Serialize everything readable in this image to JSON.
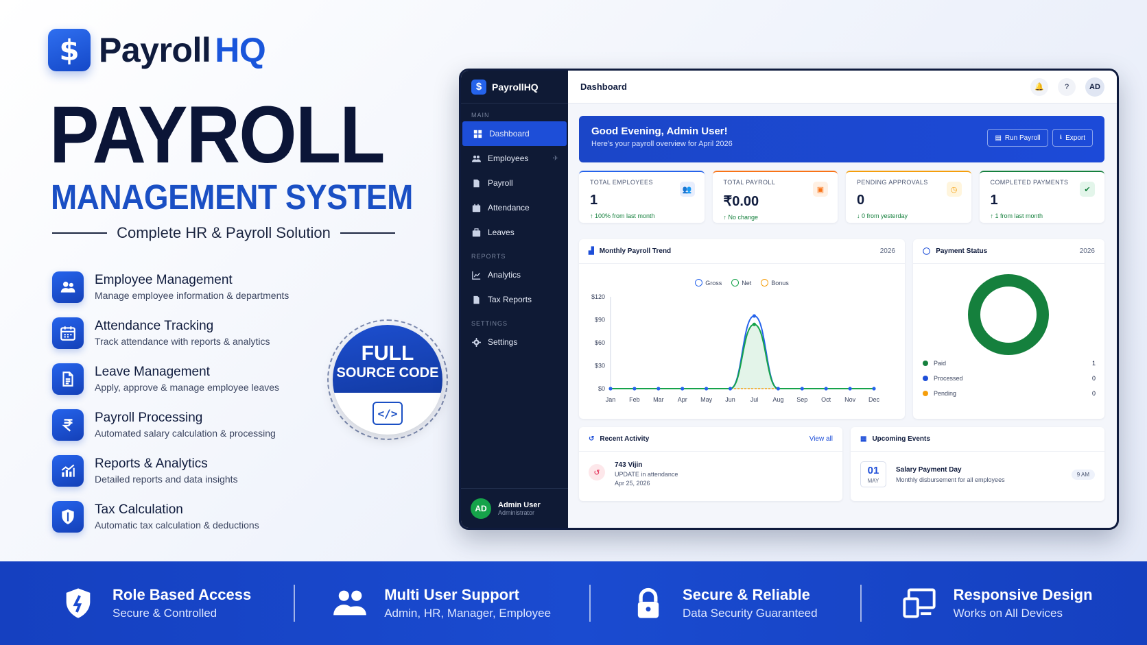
{
  "brand": {
    "mark": "$",
    "name_a": "Payroll",
    "name_b": "HQ"
  },
  "hero": {
    "title": "PAYROLL",
    "subtitle": "MANAGEMENT SYSTEM",
    "tagline": "Complete HR & Payroll Solution"
  },
  "features": [
    {
      "icon": "users-icon",
      "title": "Employee Management",
      "desc": "Manage employee information & departments"
    },
    {
      "icon": "calendar-icon",
      "title": "Attendance Tracking",
      "desc": "Track attendance with reports & analytics"
    },
    {
      "icon": "document-icon",
      "title": "Leave Management",
      "desc": "Apply, approve & manage employee leaves"
    },
    {
      "icon": "rupee-icon",
      "title": "Payroll Processing",
      "desc": "Automated salary calculation & processing"
    },
    {
      "icon": "chart-icon",
      "title": "Reports & Analytics",
      "desc": "Detailed reports and data insights"
    },
    {
      "icon": "shield-icon",
      "title": "Tax Calculation",
      "desc": "Automatic tax calculation & deductions"
    }
  ],
  "badge": {
    "line1": "FULL",
    "line2": "SOURCE CODE",
    "code": "</>"
  },
  "app": {
    "sidebar": {
      "brand": "PayrollHQ",
      "sections": {
        "main": "MAIN",
        "reports": "REPORTS",
        "settings": "SETTINGS"
      },
      "items": {
        "dashboard": "Dashboard",
        "employees": "Employees",
        "payroll": "Payroll",
        "attendance": "Attendance",
        "leaves": "Leaves",
        "analytics": "Analytics",
        "tax_reports": "Tax Reports",
        "settings": "Settings"
      },
      "user": {
        "initials": "AD",
        "name": "Admin User",
        "role": "Administrator"
      }
    },
    "topbar": {
      "title": "Dashboard",
      "avatar": "AD"
    },
    "welcome": {
      "greeting": "Good Evening, Admin User!",
      "sub": "Here's your payroll overview for April 2026",
      "run_payroll": "Run Payroll",
      "export": "Export"
    },
    "stats": [
      {
        "label": "TOTAL EMPLOYEES",
        "value": "1",
        "change": "↑ 100% from last month",
        "color": "#2563eb",
        "bg": "#e8eefd",
        "icon": "users-icon"
      },
      {
        "label": "TOTAL PAYROLL",
        "value": "₹0.00",
        "change": "↑ No change",
        "color": "#f97316",
        "bg": "#fff0e3",
        "icon": "wallet-icon"
      },
      {
        "label": "PENDING APPROVALS",
        "value": "0",
        "change": "↓ 0 from yesterday",
        "color": "#f59e0b",
        "bg": "#fff5dd",
        "icon": "clock-icon"
      },
      {
        "label": "COMPLETED PAYMENTS",
        "value": "1",
        "change": "↑ 1 from last month",
        "color": "#15803d",
        "bg": "#e3f5ea",
        "icon": "check-icon"
      }
    ],
    "trend": {
      "title": "Monthly Payroll Trend",
      "year": "2026"
    },
    "payment_status": {
      "title": "Payment Status",
      "year": "2026",
      "items": [
        {
          "label": "Paid",
          "value": "1",
          "color": "#15803d"
        },
        {
          "label": "Processed",
          "value": "0",
          "color": "#1d4ed8"
        },
        {
          "label": "Pending",
          "value": "0",
          "color": "#f59e0b"
        }
      ]
    },
    "recent": {
      "title": "Recent Activity",
      "view_all": "View all",
      "item_title": "743 Vijin",
      "item_sub": "UPDATE in attendance",
      "item_date": "Apr 25, 2026"
    },
    "events": {
      "title": "Upcoming Events",
      "day": "01",
      "month": "MAY",
      "item_title": "Salary Payment Day",
      "item_sub": "Monthly disbursement for all employees",
      "time": "9 AM"
    }
  },
  "chart_data": {
    "type": "area",
    "categories": [
      "Jan",
      "Feb",
      "Mar",
      "Apr",
      "May",
      "Jun",
      "Jul",
      "Aug",
      "Sep",
      "Oct",
      "Nov",
      "Dec"
    ],
    "series": [
      {
        "name": "Gross",
        "color": "#2563eb",
        "values": [
          0,
          0,
          0,
          0,
          0,
          0,
          95,
          0,
          0,
          0,
          0,
          0
        ]
      },
      {
        "name": "Net",
        "color": "#16a34a",
        "values": [
          0,
          0,
          0,
          0,
          0,
          0,
          84,
          0,
          0,
          0,
          0,
          0
        ]
      },
      {
        "name": "Bonus",
        "color": "#f59e0b",
        "values": [
          0,
          0,
          0,
          0,
          0,
          0,
          0,
          0,
          0,
          0,
          0,
          0
        ]
      }
    ],
    "ylim": [
      0,
      120
    ],
    "yticks": [
      "$0",
      "$30",
      "$60",
      "$90",
      "$120"
    ],
    "legend": "top-center"
  },
  "bottom": [
    {
      "icon": "shield-icon",
      "title": "Role Based Access",
      "desc": "Secure & Controlled"
    },
    {
      "icon": "users-icon",
      "title": "Multi User Support",
      "desc": "Admin, HR, Manager, Employee"
    },
    {
      "icon": "lock-icon",
      "title": "Secure & Reliable",
      "desc": "Data Security Guaranteed"
    },
    {
      "icon": "devices-icon",
      "title": "Responsive Design",
      "desc": "Works on All Devices"
    }
  ]
}
